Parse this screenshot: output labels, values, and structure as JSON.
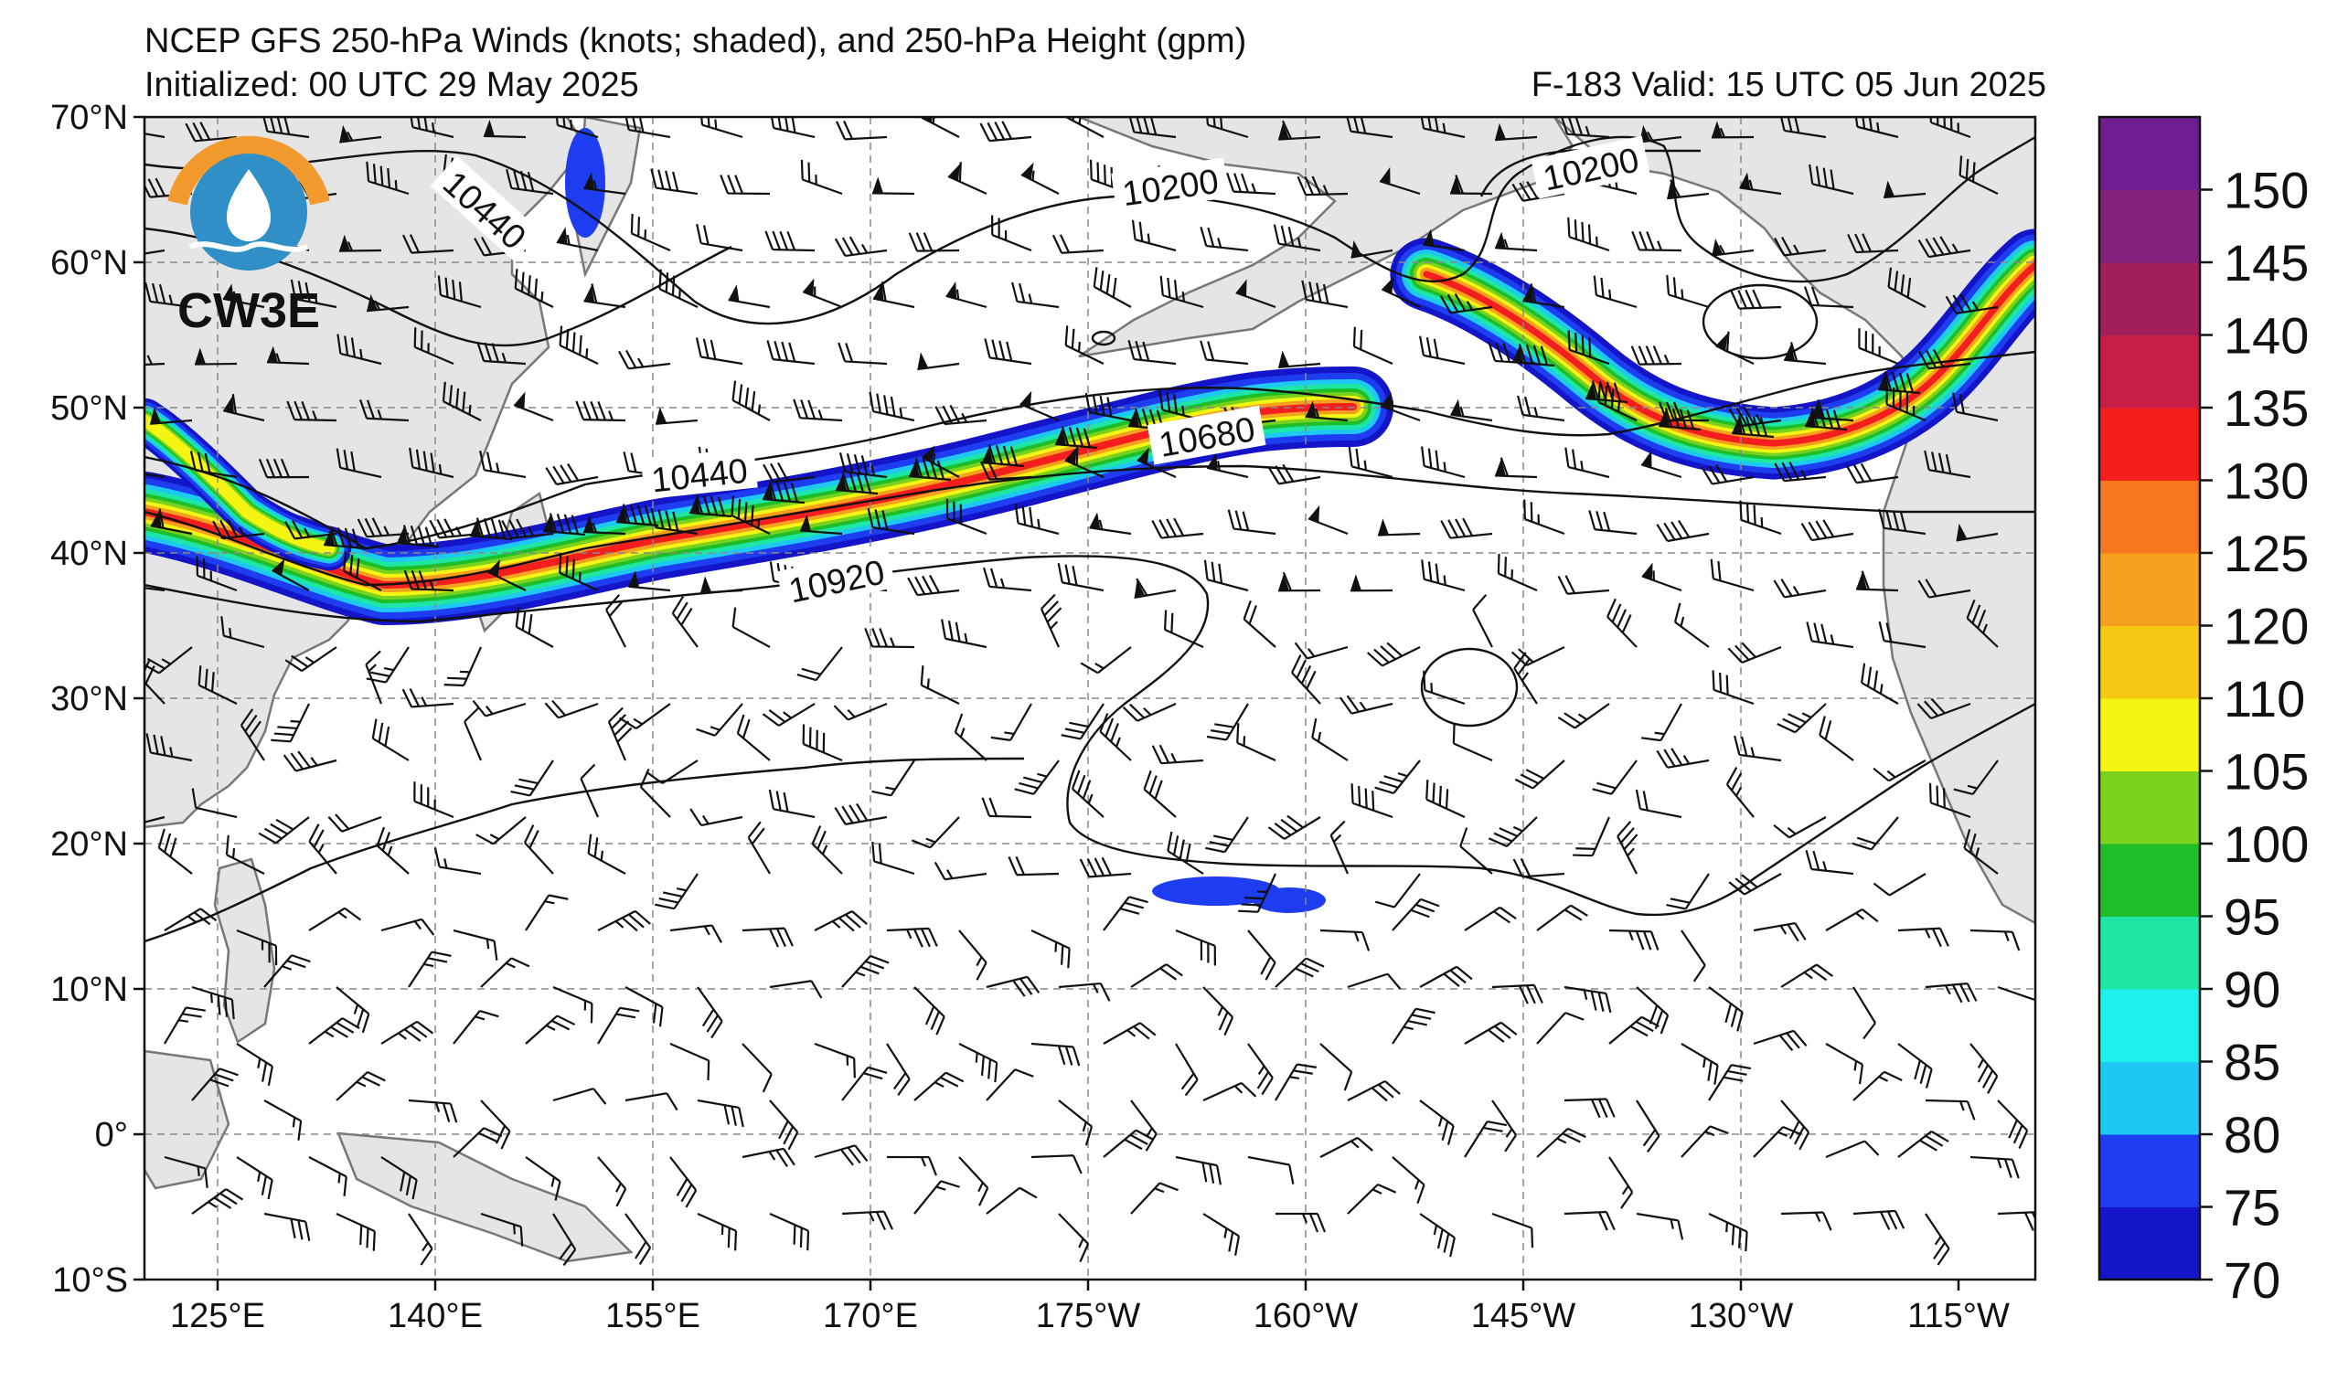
{
  "header": {
    "title": "NCEP GFS 250-hPa Winds (knots; shaded), and 250-hPa Height (gpm)",
    "initialized": "Initialized: 00 UTC 29 May 2025",
    "valid": "F-183  Valid: 15 UTC 05 Jun 2025"
  },
  "logo": {
    "text": "CW3E",
    "colors": {
      "ring": "#f29a2e",
      "waves": "#2f8fc6",
      "text": "#2f8fc6"
    }
  },
  "map": {
    "lat_labels": [
      "70°N",
      "60°N",
      "50°N",
      "40°N",
      "30°N",
      "20°N",
      "10°N",
      "0°",
      "10°S"
    ],
    "lon_labels": [
      "125°E",
      "140°E",
      "155°E",
      "170°E",
      "175°W",
      "160°W",
      "145°W",
      "130°W",
      "115°W"
    ],
    "contour_labels": [
      {
        "text": "10440"
      },
      {
        "text": "10200"
      },
      {
        "text": "10200"
      },
      {
        "text": "10440"
      },
      {
        "text": "10680"
      },
      {
        "text": "10920"
      }
    ],
    "land_color": "#e5e5e5",
    "coast_color": "#777777"
  },
  "colorbar": {
    "ticks": [
      "70",
      "75",
      "80",
      "85",
      "90",
      "95",
      "100",
      "105",
      "110",
      "120",
      "125",
      "130",
      "135",
      "140",
      "145",
      "150"
    ],
    "colors": [
      "#1414c8",
      "#1e3cf0",
      "#1ec8f5",
      "#1ef0eb",
      "#1ee6a5",
      "#1ebe28",
      "#78d21e",
      "#f5f514",
      "#f5c814",
      "#f5a01e",
      "#f5781e",
      "#f51e1e",
      "#c81e46",
      "#a01e5a",
      "#82227d",
      "#6e1e91"
    ]
  }
}
